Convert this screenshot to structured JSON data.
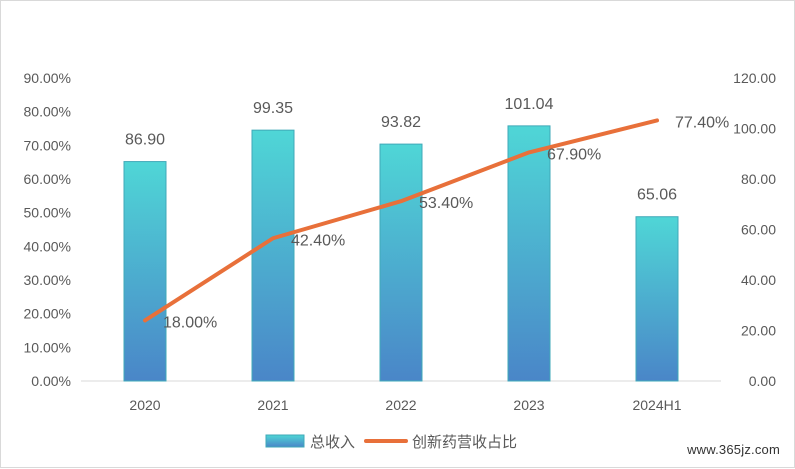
{
  "chart_data": {
    "type": "bar",
    "categories": [
      "2020",
      "2021",
      "2022",
      "2023",
      "2024H1"
    ],
    "series": [
      {
        "name": "总收入",
        "kind": "bar",
        "axis": "right",
        "values": [
          86.9,
          99.35,
          93.82,
          101.04,
          65.06
        ],
        "labels": [
          "86.90",
          "99.35",
          "93.82",
          "101.04",
          "65.06"
        ]
      },
      {
        "name": "创新药营收占比",
        "kind": "line",
        "axis": "left",
        "values": [
          18.0,
          42.4,
          53.4,
          67.9,
          77.4
        ],
        "labels": [
          "18.00%",
          "42.40%",
          "53.40%",
          "67.90%",
          "77.40%"
        ]
      }
    ],
    "y_left": {
      "min": 0,
      "max": 90,
      "ticks": [
        "0.00%",
        "10.00%",
        "20.00%",
        "30.00%",
        "40.00%",
        "50.00%",
        "60.00%",
        "70.00%",
        "80.00%",
        "90.00%"
      ]
    },
    "y_right": {
      "min": 0,
      "max": 120,
      "ticks": [
        "0.00",
        "20.00",
        "40.00",
        "60.00",
        "80.00",
        "100.00",
        "120.00"
      ]
    },
    "grid": false,
    "legend": "bottom",
    "colors": {
      "bar_top": "#4fd6d6",
      "bar_bottom": "#4a86c8",
      "line": "#e8703a",
      "text": "#595959",
      "axis": "#d9d9d9"
    }
  },
  "watermark": "www.365jz.com"
}
